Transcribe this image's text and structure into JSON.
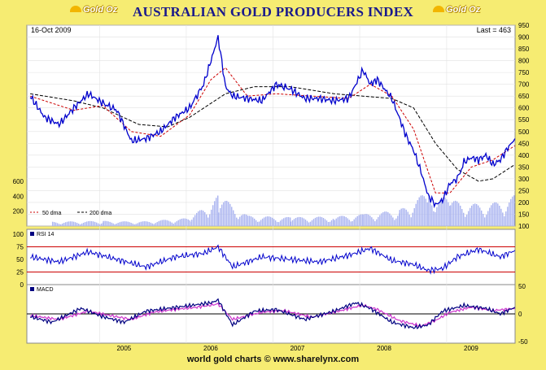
{
  "header": {
    "title": "AUSTRALIAN GOLD PRODUCERS INDEX",
    "logo_left": "Gold Oz",
    "logo_right": "Gold Oz"
  },
  "footer": {
    "text": "world gold charts © www.sharelynx.com"
  },
  "colors": {
    "background": "#f6ec72",
    "price": "#0000cc",
    "dma50": "#cc0000",
    "dma200": "#000000",
    "volume": "#aab4f0",
    "rsi_line": "#0000cc",
    "rsi_bands": "#cc0000",
    "macd_line": "#000080",
    "macd_signal": "#cc33cc"
  },
  "chart_data": [
    {
      "type": "line",
      "panel": "price",
      "date_label": "16-Oct 2009",
      "last_label": "Last = 463",
      "x_ticks": [
        "2005",
        "2006",
        "2007",
        "2008",
        "2009"
      ],
      "x_range": [
        "2004-03-01",
        "2009-10-16"
      ],
      "y_ticks_right": [
        100,
        150,
        200,
        250,
        300,
        350,
        400,
        450,
        500,
        550,
        600,
        650,
        700,
        750,
        800,
        850,
        900,
        950
      ],
      "ylim": [
        100,
        950
      ],
      "volume_ticks_left": [
        200,
        400,
        600
      ],
      "legend": [
        "50 dma",
        "200 dma"
      ],
      "series": [
        {
          "name": "Price",
          "x": [
            "2004-03",
            "2004-05",
            "2004-07",
            "2004-09",
            "2004-11",
            "2005-01",
            "2005-03",
            "2005-05",
            "2005-07",
            "2005-09",
            "2005-11",
            "2006-01",
            "2006-03",
            "2006-04",
            "2006-05",
            "2006-06",
            "2006-07",
            "2006-09",
            "2006-11",
            "2007-01",
            "2007-03",
            "2007-05",
            "2007-07",
            "2007-09",
            "2007-11",
            "2008-01",
            "2008-02",
            "2008-03",
            "2008-05",
            "2008-06",
            "2008-07",
            "2008-08",
            "2008-09",
            "2008-10",
            "2008-11",
            "2008-12",
            "2009-01",
            "2009-02",
            "2009-03",
            "2009-04",
            "2009-05",
            "2009-06",
            "2009-07",
            "2009-08",
            "2009-09",
            "2009-10"
          ],
          "values": [
            650,
            560,
            530,
            600,
            660,
            620,
            590,
            460,
            470,
            500,
            560,
            600,
            700,
            800,
            900,
            690,
            650,
            640,
            630,
            700,
            680,
            640,
            640,
            630,
            640,
            760,
            700,
            720,
            640,
            560,
            480,
            420,
            330,
            230,
            190,
            210,
            280,
            300,
            370,
            390,
            380,
            400,
            360,
            380,
            430,
            470
          ]
        },
        {
          "name": "50 dma",
          "x": [
            "2004-03",
            "2004-09",
            "2005-01",
            "2005-05",
            "2005-09",
            "2006-01",
            "2006-04",
            "2006-06",
            "2006-09",
            "2007-01",
            "2007-06",
            "2007-11",
            "2008-02",
            "2008-05",
            "2008-08",
            "2008-11",
            "2009-01",
            "2009-04",
            "2009-07",
            "2009-10"
          ],
          "values": [
            650,
            590,
            610,
            500,
            480,
            570,
            720,
            770,
            650,
            660,
            650,
            640,
            700,
            650,
            510,
            240,
            240,
            350,
            380,
            440
          ]
        },
        {
          "name": "200 dma",
          "x": [
            "2004-03",
            "2004-09",
            "2005-01",
            "2005-06",
            "2005-10",
            "2006-01",
            "2006-06",
            "2006-10",
            "2007-03",
            "2007-09",
            "2008-01",
            "2008-05",
            "2008-08",
            "2008-11",
            "2009-02",
            "2009-05",
            "2009-07",
            "2009-10"
          ],
          "values": [
            660,
            630,
            600,
            530,
            520,
            560,
            660,
            690,
            690,
            660,
            650,
            640,
            600,
            450,
            340,
            290,
            300,
            360
          ]
        },
        {
          "name": "Volume",
          "note_levels": "approximate relative bar heights",
          "x": [
            "2004-06",
            "2005-01",
            "2005-06",
            "2006-01",
            "2006-05",
            "2006-09",
            "2007-03",
            "2007-09",
            "2008-01",
            "2008-06",
            "2008-10",
            "2009-01",
            "2009-06",
            "2009-10"
          ],
          "values": [
            60,
            70,
            60,
            110,
            420,
            140,
            120,
            130,
            160,
            220,
            480,
            350,
            280,
            420
          ]
        }
      ]
    },
    {
      "type": "line",
      "panel": "rsi",
      "legend": [
        "RSI 14"
      ],
      "y_ticks": [
        0,
        25,
        50,
        75,
        100
      ],
      "ylim": [
        0,
        100
      ],
      "bands": [
        25,
        75
      ],
      "x": [
        "2004-03",
        "2004-07",
        "2004-11",
        "2005-03",
        "2005-07",
        "2005-11",
        "2006-03",
        "2006-05",
        "2006-07",
        "2006-11",
        "2007-03",
        "2007-07",
        "2007-11",
        "2008-02",
        "2008-05",
        "2008-08",
        "2008-10",
        "2008-12",
        "2009-02",
        "2009-05",
        "2009-08",
        "2009-10"
      ],
      "values": [
        55,
        45,
        65,
        50,
        35,
        55,
        62,
        75,
        35,
        55,
        50,
        45,
        58,
        72,
        48,
        40,
        28,
        32,
        55,
        70,
        55,
        68
      ]
    },
    {
      "type": "line",
      "panel": "macd",
      "legend": [
        "MACD"
      ],
      "y_ticks": [
        -50,
        0,
        50
      ],
      "ylim": [
        -50,
        50
      ],
      "series": [
        {
          "name": "MACD",
          "x": [
            "2004-03",
            "2004-06",
            "2004-10",
            "2005-01",
            "2005-04",
            "2005-07",
            "2005-10",
            "2006-01",
            "2006-04",
            "2006-05",
            "2006-07",
            "2006-10",
            "2007-01",
            "2007-05",
            "2007-09",
            "2007-12",
            "2008-02",
            "2008-05",
            "2008-08",
            "2008-10",
            "2008-12",
            "2009-03",
            "2009-06",
            "2009-08",
            "2009-10"
          ],
          "values": [
            -5,
            -15,
            10,
            -5,
            -15,
            5,
            10,
            15,
            20,
            25,
            -20,
            5,
            8,
            -10,
            5,
            20,
            10,
            -15,
            -25,
            -20,
            5,
            15,
            10,
            0,
            12
          ]
        },
        {
          "name": "Signal",
          "x": [
            "2004-03",
            "2004-07",
            "2004-11",
            "2005-02",
            "2005-05",
            "2005-08",
            "2005-11",
            "2006-02",
            "2006-05",
            "2006-07",
            "2006-11",
            "2007-02",
            "2007-06",
            "2007-10",
            "2008-01",
            "2008-03",
            "2008-06",
            "2008-09",
            "2008-11",
            "2009-01",
            "2009-04",
            "2009-07",
            "2009-10"
          ],
          "values": [
            -3,
            -10,
            5,
            -3,
            -10,
            3,
            8,
            12,
            18,
            -10,
            3,
            6,
            -6,
            6,
            16,
            8,
            -12,
            -22,
            -12,
            3,
            12,
            6,
            10
          ]
        }
      ]
    }
  ]
}
